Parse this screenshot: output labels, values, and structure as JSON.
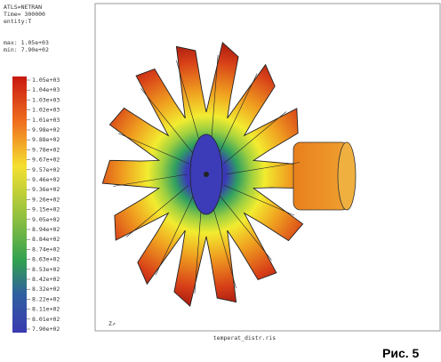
{
  "header": {
    "lines": [
      "ATLS=NETRAN",
      "Time= 300000",
      "entity:T"
    ],
    "max": "max: 1.05e+03",
    "min": "min: 7.90e+02"
  },
  "legend": {
    "labels": [
      "1.05e+03",
      "1.04e+03",
      "1.03e+03",
      "1.02e+03",
      "1.01e+03",
      "9.98e+02",
      "9.88e+02",
      "9.78e+02",
      "9.67e+02",
      "9.57e+02",
      "9.46e+02",
      "9.36e+02",
      "9.26e+02",
      "9.15e+02",
      "9.05e+02",
      "8.94e+02",
      "8.84e+02",
      "8.74e+02",
      "8.63e+02",
      "8.53e+02",
      "8.42e+02",
      "8.32e+02",
      "8.22e+02",
      "8.11e+02",
      "8.01e+02",
      "7.90e+02"
    ]
  },
  "footer": {
    "file": "temperat_distr.ris"
  },
  "caption": "Рис. 5"
}
